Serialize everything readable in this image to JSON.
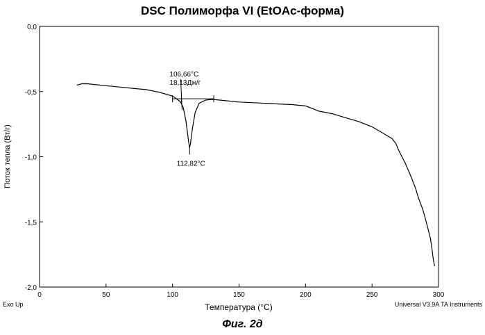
{
  "chart_data": {
    "type": "line",
    "title": "DSC Полиморфа VI (EtOAc-форма)",
    "xlabel": "Температура (°C)",
    "ylabel": "Поток тепла (Вт/г)",
    "xlim": [
      0,
      300
    ],
    "ylim": [
      -2.0,
      0.0
    ],
    "x_ticks": [
      0,
      50,
      100,
      150,
      200,
      250,
      300
    ],
    "x_tick_labels": [
      "0",
      "50",
      "100",
      "150",
      "200",
      "250",
      "300"
    ],
    "y_ticks": [
      0.0,
      -0.5,
      -1.0,
      -1.5,
      -2.0
    ],
    "y_tick_labels": [
      "0,0",
      "-0,5",
      "-1,0",
      "-1,5",
      "-2,0"
    ],
    "series": [
      {
        "name": "DSC",
        "x": [
          28,
          32,
          36,
          40,
          50,
          60,
          70,
          80,
          90,
          95,
          100,
          103,
          106,
          108,
          110,
          111,
          112,
          112.8,
          113.5,
          115,
          117,
          120,
          125,
          130,
          140,
          150,
          160,
          170,
          180,
          190,
          200,
          205,
          210,
          220,
          230,
          240,
          250,
          255,
          260,
          265,
          268,
          270,
          272,
          275,
          278,
          280,
          283,
          285,
          288,
          290,
          292,
          294,
          295,
          296,
          297
        ],
        "y": [
          -0.45,
          -0.44,
          -0.44,
          -0.445,
          -0.455,
          -0.465,
          -0.475,
          -0.485,
          -0.505,
          -0.52,
          -0.535,
          -0.555,
          -0.58,
          -0.62,
          -0.72,
          -0.8,
          -0.88,
          -0.93,
          -0.9,
          -0.78,
          -0.66,
          -0.59,
          -0.565,
          -0.56,
          -0.57,
          -0.58,
          -0.585,
          -0.59,
          -0.595,
          -0.6,
          -0.61,
          -0.63,
          -0.65,
          -0.67,
          -0.7,
          -0.73,
          -0.77,
          -0.8,
          -0.83,
          -0.86,
          -0.9,
          -0.95,
          -0.99,
          -1.05,
          -1.12,
          -1.17,
          -1.25,
          -1.32,
          -1.4,
          -1.47,
          -1.55,
          -1.63,
          -1.7,
          -1.78,
          -1.84
        ]
      }
    ],
    "baseline": {
      "x": [
        100,
        131
      ],
      "y": [
        -0.555,
        -0.555
      ]
    },
    "annotations": [
      {
        "text": "106,66°C",
        "x": 106.66,
        "y": -0.555
      },
      {
        "text": "18,13Дж/г",
        "x": 106.66,
        "y": -0.555
      },
      {
        "text": "112,82°C",
        "x": 112.82,
        "y": -0.93
      }
    ],
    "left_footer": "Exo Up",
    "right_footer": "Universal V3.9A TA Instruments",
    "figure_caption": "Фиг. 2д"
  }
}
